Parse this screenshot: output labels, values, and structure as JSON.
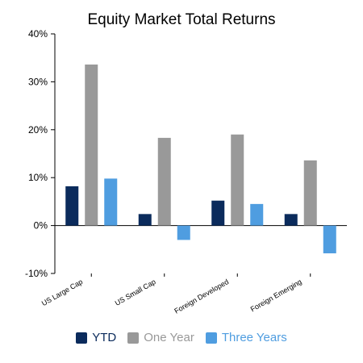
{
  "chart_data": {
    "type": "bar",
    "title": "Equity Market Total Returns",
    "categories": [
      "US Large Cap",
      "US Small Cap",
      "Foreign Developed",
      "Foreign Emerging"
    ],
    "series": [
      {
        "name": "YTD",
        "color": "#0b2b5c",
        "values": [
          8.2,
          2.4,
          5.2,
          2.4
        ]
      },
      {
        "name": "One Year",
        "color": "#999999",
        "values": [
          33.6,
          18.3,
          19.0,
          13.6
        ]
      },
      {
        "name": "Three Years",
        "color": "#4f9de0",
        "values": [
          9.8,
          -3.0,
          4.5,
          -5.8
        ]
      }
    ],
    "ylim": [
      -10,
      40
    ],
    "yticks": [
      -10,
      0,
      10,
      20,
      30,
      40
    ],
    "ytick_labels": [
      "-10%",
      "0%",
      "10%",
      "20%",
      "30%",
      "40%"
    ],
    "grid": false,
    "legend_position": "bottom"
  }
}
